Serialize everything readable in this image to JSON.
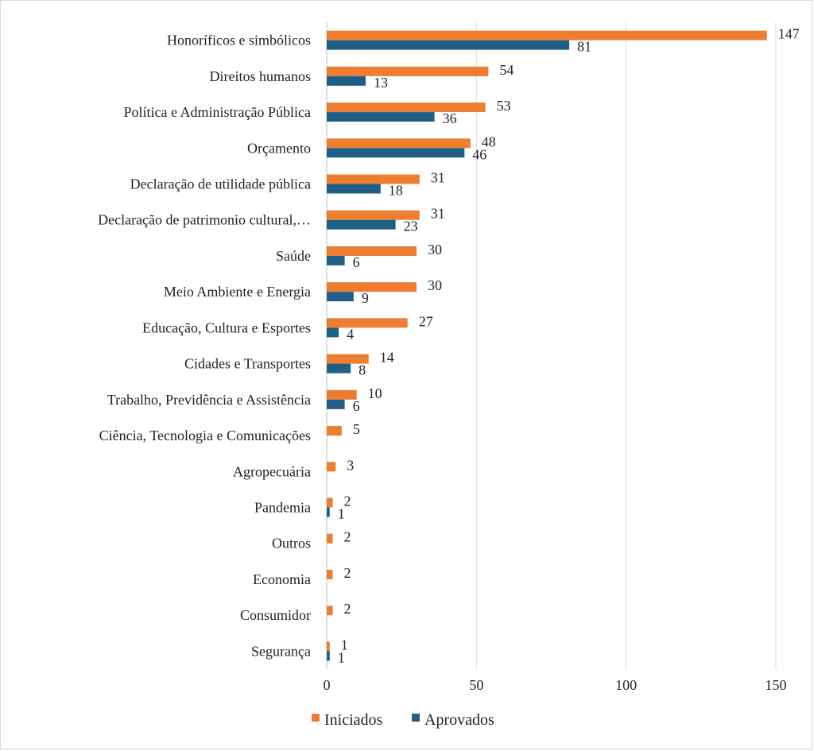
{
  "chart_data": {
    "type": "bar",
    "orientation": "horizontal",
    "categories": [
      "Honoríficos e simbólicos",
      "Direitos humanos",
      "Política e Administração Pública",
      "Orçamento",
      "Declaração de utilidade pública",
      "Declaração de patrimonio cultural,…",
      "Saúde",
      "Meio Ambiente e Energia",
      "Educação, Cultura e Esportes",
      "Cidades e Transportes",
      "Trabalho, Previdência e Assistência",
      "Ciência, Tecnologia e Comunicações",
      "Agropecuária",
      "Pandemia",
      "Outros",
      "Economia",
      "Consumidor",
      "Segurança"
    ],
    "series": [
      {
        "name": "Iniciados",
        "color": "#ED7D31",
        "values": [
          147,
          54,
          53,
          48,
          31,
          31,
          30,
          30,
          27,
          14,
          10,
          5,
          3,
          2,
          2,
          2,
          2,
          1
        ]
      },
      {
        "name": "Aprovados",
        "color": "#1F5F85",
        "values": [
          81,
          13,
          36,
          46,
          18,
          23,
          6,
          9,
          4,
          8,
          6,
          null,
          null,
          1,
          null,
          null,
          null,
          1
        ]
      }
    ],
    "xlim": [
      0,
      150
    ],
    "xticks": [
      0,
      50,
      100,
      150
    ],
    "grid": true,
    "legend": "bottom-center",
    "title": "",
    "xlabel": "",
    "ylabel": ""
  }
}
